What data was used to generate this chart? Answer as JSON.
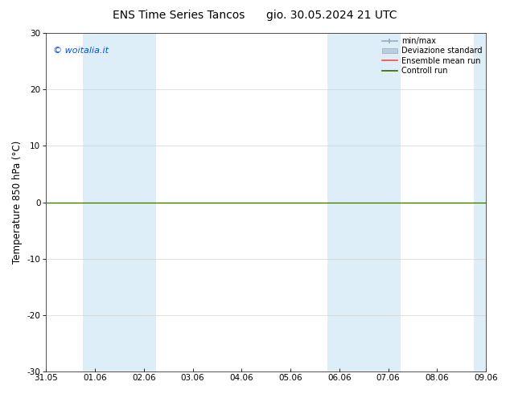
{
  "title_left": "ENS Time Series Tancos",
  "title_right": "gio. 30.05.2024 21 UTC",
  "ylabel": "Temperature 850 hPa (°C)",
  "ylim": [
    -30,
    30
  ],
  "yticks": [
    -30,
    -20,
    -10,
    0,
    10,
    20,
    30
  ],
  "xlim": [
    0,
    9
  ],
  "xtick_labels": [
    "31.05",
    "01.06",
    "02.06",
    "03.06",
    "04.06",
    "05.06",
    "06.06",
    "07.06",
    "08.06",
    "09.06"
  ],
  "xtick_positions": [
    0,
    1,
    2,
    3,
    4,
    5,
    6,
    7,
    8,
    9
  ],
  "watermark": "© woitalia.it",
  "watermark_color": "#0055cc",
  "bg_color": "#ffffff",
  "plot_bg_color": "#ffffff",
  "shaded_band_color": "#ddeef8",
  "shaded_bands": [
    [
      0.75,
      1.5
    ],
    [
      1.5,
      2.25
    ],
    [
      5.75,
      6.5
    ],
    [
      6.5,
      7.25
    ],
    [
      8.75,
      9.0
    ]
  ],
  "line_y": 0,
  "ensemble_mean_color": "#ff4444",
  "control_run_color": "#336600",
  "minmax_color": "#99aabb",
  "stddev_color": "#bbccdd",
  "legend_entries": [
    "min/max",
    "Deviazione standard",
    "Ensemble mean run",
    "Controll run"
  ],
  "legend_colors": [
    "#99aabb",
    "#bbccdd",
    "#ff4444",
    "#336600"
  ],
  "title_fontsize": 10,
  "axis_fontsize": 8.5,
  "tick_fontsize": 7.5,
  "watermark_fontsize": 8
}
